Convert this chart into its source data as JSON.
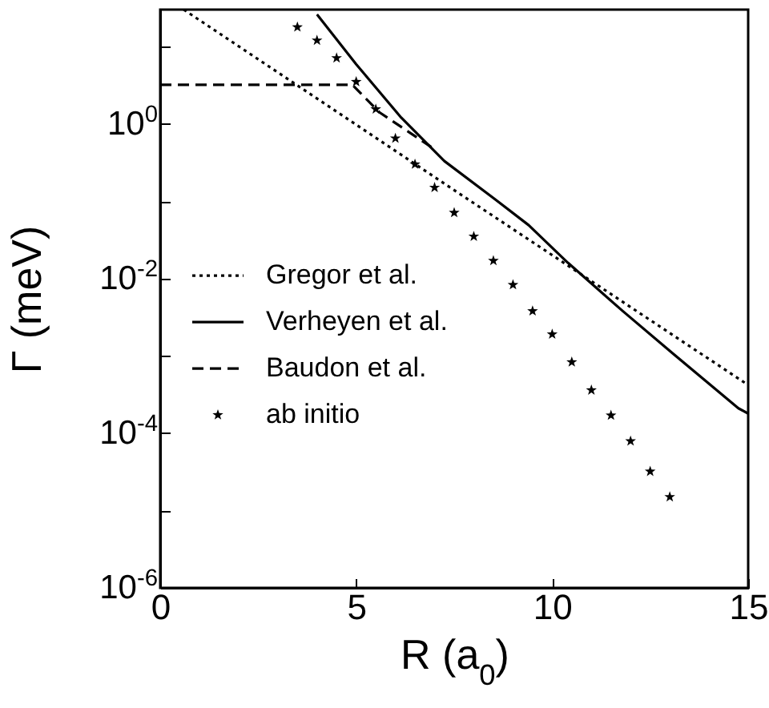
{
  "chart_data": {
    "type": "line",
    "xlabel": "R (a$_{0}$)",
    "ylabel": "Γ (meV)",
    "xlim": [
      0,
      15
    ],
    "xticks": [
      0,
      5,
      10,
      15
    ],
    "ylim": [
      1e-06,
      30
    ],
    "yticks": [
      {
        "value": 1e-06,
        "label": "10$^{-6}$"
      },
      {
        "value": 1e-05,
        "label": null
      },
      {
        "value": 0.0001,
        "label": "10$^{-4}$"
      },
      {
        "value": 0.001,
        "label": null
      },
      {
        "value": 0.01,
        "label": "10$^{-2}$"
      },
      {
        "value": 0.1,
        "label": null
      },
      {
        "value": 1,
        "label": "10$^{0}$"
      },
      {
        "value": 10,
        "label": null
      }
    ],
    "log": "y",
    "grid": false,
    "legend": "left",
    "series": [
      {
        "name": "Gregor et al.",
        "color": "#000000",
        "line_style": "dotted",
        "x": [
          0.6,
          7.8,
          15
        ],
        "values": [
          30,
          0.11,
          0.00042
        ]
      },
      {
        "name": "Verheyen et al.",
        "color": "#000000",
        "line_style": "solid",
        "x": [
          4.0,
          5.0,
          6.15,
          7.25,
          8.5,
          9.4,
          10.4,
          11.8,
          13.1,
          14.75,
          15
        ],
        "values": [
          26,
          5.9,
          1.2,
          0.33,
          0.11,
          0.049,
          0.016,
          0.0038,
          0.00105,
          0.00021,
          0.00018
        ]
      },
      {
        "name": "Baudon et al.",
        "color": "#000000",
        "line_style": "dashed",
        "x": [
          0,
          4.9,
          5.6,
          7.0
        ],
        "values": [
          3.2,
          3.2,
          1.4,
          0.47
        ]
      },
      {
        "name": "ab initio",
        "color": "#000000",
        "type": "scatter",
        "marker": "star",
        "x": [
          3.5,
          4,
          4.5,
          5,
          5.5,
          6,
          6.5,
          7,
          7.5,
          8,
          8.5,
          9,
          9.5,
          10,
          10.5,
          11,
          11.5,
          12,
          12.5,
          13
        ],
        "values": [
          17.8,
          12,
          7.1,
          3.5,
          1.55,
          0.65,
          0.3,
          0.15,
          0.071,
          0.035,
          0.017,
          0.0083,
          0.0038,
          0.0019,
          0.00083,
          0.00036,
          0.00017,
          7.9e-05,
          3.2e-05,
          1.5e-05
        ]
      }
    ]
  }
}
